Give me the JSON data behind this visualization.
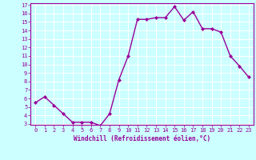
{
  "x": [
    0,
    1,
    2,
    3,
    4,
    5,
    6,
    7,
    8,
    9,
    10,
    11,
    12,
    13,
    14,
    15,
    16,
    17,
    18,
    19,
    20,
    21,
    22,
    23
  ],
  "y": [
    5.5,
    6.2,
    5.2,
    4.2,
    3.2,
    3.2,
    3.2,
    2.8,
    4.2,
    8.2,
    11.0,
    15.3,
    15.3,
    15.5,
    15.5,
    16.8,
    15.2,
    16.2,
    14.2,
    14.2,
    13.8,
    11.0,
    9.8,
    8.5
  ],
  "ylim": [
    3,
    17
  ],
  "xlim": [
    -0.5,
    23.5
  ],
  "yticks": [
    3,
    4,
    5,
    6,
    7,
    8,
    9,
    10,
    11,
    12,
    13,
    14,
    15,
    16,
    17
  ],
  "xticks": [
    0,
    1,
    2,
    3,
    4,
    5,
    6,
    7,
    8,
    9,
    10,
    11,
    12,
    13,
    14,
    15,
    16,
    17,
    18,
    19,
    20,
    21,
    22,
    23
  ],
  "xlabel": "Windchill (Refroidissement éolien,°C)",
  "line_color": "#990099",
  "marker": "D",
  "marker_size": 2.0,
  "bg_color": "#ccffff",
  "grid_color": "#ffffff",
  "tick_color": "#990099",
  "label_color": "#990099",
  "spine_color": "#990099",
  "tick_fontsize": 5.0,
  "xlabel_fontsize": 5.5,
  "linewidth": 1.0
}
